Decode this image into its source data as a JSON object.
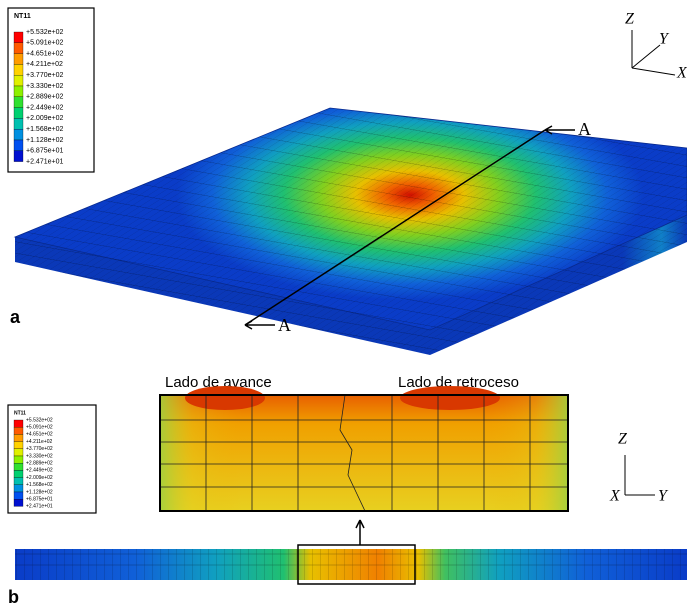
{
  "panel_a": {
    "label": "a",
    "legend": {
      "title": "NT11",
      "values": [
        "+5.532e+02",
        "+5.091e+02",
        "+4.651e+02",
        "+4.211e+02",
        "+3.770e+02",
        "+3.330e+02",
        "+2.889e+02",
        "+2.449e+02",
        "+2.009e+02",
        "+1.568e+02",
        "+1.128e+02",
        "+6.875e+01",
        "+2.471e+01"
      ]
    },
    "section_labels": [
      "A",
      "A"
    ],
    "axes": [
      "Z",
      "Y",
      "X"
    ]
  },
  "panel_b": {
    "label": "b",
    "legend": {
      "title": "NT11",
      "values": [
        "+5.532e+02",
        "+5.091e+02",
        "+4.651e+02",
        "+4.211e+02",
        "+3.770e+02",
        "+3.330e+02",
        "+2.889e+02",
        "+2.449e+02",
        "+2.009e+02",
        "+1.568e+02",
        "+1.128e+02",
        "+6.875e+01",
        "+2.471e+01"
      ]
    },
    "sides": [
      "Lado de avance",
      "Lado de retroceso"
    ],
    "axes": [
      "Z",
      "X",
      "Y"
    ]
  }
}
